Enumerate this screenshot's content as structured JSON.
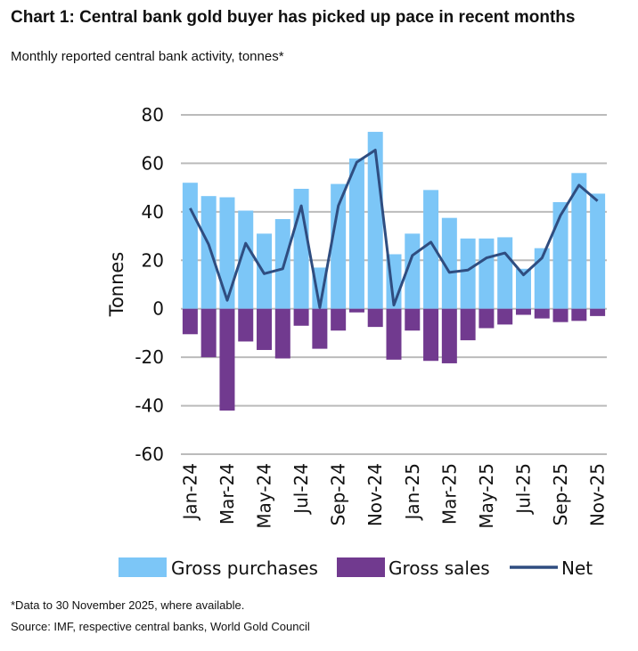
{
  "header": {
    "title": "Chart 1: Central bank gold buyer has picked up pace in recent months",
    "subtitle": "Monthly reported central bank activity, tonnes*"
  },
  "footer": {
    "note": "*Data to 30 November 2025, where available.",
    "source": "Source: IMF, respective central banks, World Gold Council"
  },
  "colors": {
    "purchases": "#7cc6f7",
    "sales": "#713a8f",
    "net": "#2f4d80",
    "grid": "#bbbbbb"
  },
  "chart_data": {
    "type": "bar",
    "ylabel": "Tonnes",
    "ylim": [
      -60,
      80
    ],
    "yticks": [
      80,
      60,
      40,
      20,
      0,
      -20,
      -40,
      -60
    ],
    "grid": true,
    "legend_position": "bottom",
    "categories": [
      "Jan-24",
      "Feb-24",
      "Mar-24",
      "Apr-24",
      "May-24",
      "Jun-24",
      "Jul-24",
      "Aug-24",
      "Sep-24",
      "Oct-24",
      "Nov-24",
      "Dec-24",
      "Jan-25",
      "Feb-25",
      "Mar-25",
      "Apr-25",
      "May-25",
      "Jun-25",
      "Jul-25",
      "Aug-25",
      "Sep-25",
      "Oct-25",
      "Nov-25"
    ],
    "xtick_labels": [
      "Jan-24",
      "Mar-24",
      "May-24",
      "Jul-24",
      "Sep-24",
      "Nov-24",
      "Jan-25",
      "Mar-25",
      "May-25",
      "Jul-25",
      "Sep-25",
      "Nov-25"
    ],
    "series": [
      {
        "name": "Gross purchases",
        "type": "bar",
        "values": [
          52,
          46.5,
          46,
          40.5,
          31,
          37,
          49.5,
          17,
          51.5,
          62,
          73,
          22.5,
          31,
          49,
          37.5,
          29,
          29,
          29.5,
          16.5,
          25,
          44,
          56,
          47.5
        ]
      },
      {
        "name": "Gross sales",
        "type": "bar",
        "values": [
          -10.5,
          -20,
          -42,
          -13.5,
          -17,
          -20.5,
          -7,
          -16.5,
          -9,
          -1.5,
          -7.5,
          -21,
          -9,
          -21.5,
          -22.5,
          -13,
          -8,
          -6.5,
          -2.5,
          -4,
          -5.5,
          -5,
          -3
        ]
      },
      {
        "name": "Net",
        "type": "line",
        "values": [
          41.5,
          26.5,
          3.5,
          27,
          14.5,
          16.5,
          42.5,
          0.5,
          42.5,
          60.5,
          65.5,
          1.5,
          22,
          27.5,
          15,
          16,
          21,
          23,
          14,
          21,
          38.5,
          51,
          44.5
        ]
      }
    ]
  }
}
